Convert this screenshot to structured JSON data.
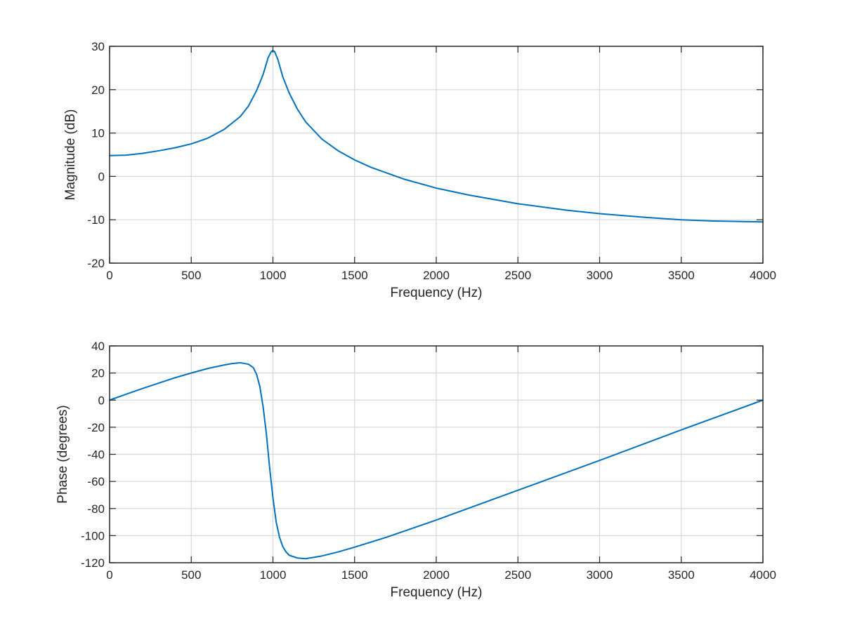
{
  "colors": {
    "series": "#0072BD",
    "axis": "#262626",
    "grid": "#d9d9d9"
  },
  "chart_data": [
    {
      "type": "line",
      "title": "",
      "xlabel": "Frequency (Hz)",
      "ylabel": "Magnitude (dB)",
      "xlim": [
        0,
        4000
      ],
      "ylim": [
        -20,
        30
      ],
      "xticks": [
        0,
        500,
        1000,
        1500,
        2000,
        2500,
        3000,
        3500,
        4000
      ],
      "yticks": [
        -20,
        -10,
        0,
        10,
        20,
        30
      ],
      "xtick_labels": [
        "0",
        "500",
        "1000",
        "1500",
        "2000",
        "2500",
        "3000",
        "3500",
        "4000"
      ],
      "ytick_labels": [
        "-20",
        "-10",
        "0",
        "10",
        "20",
        "30"
      ],
      "grid": true,
      "legend": null,
      "series": [
        {
          "x": [
            0,
            100,
            200,
            300,
            400,
            500,
            600,
            700,
            800,
            850,
            900,
            940,
            970,
            990,
            1000,
            1010,
            1030,
            1060,
            1100,
            1150,
            1200,
            1300,
            1400,
            1500,
            1600,
            1800,
            2000,
            2200,
            2500,
            2800,
            3000,
            3300,
            3500,
            3700,
            4000
          ],
          "values": [
            4.8,
            4.9,
            5.3,
            5.9,
            6.6,
            7.5,
            8.8,
            10.8,
            13.8,
            16.2,
            19.8,
            23.5,
            27.3,
            28.8,
            29.0,
            28.8,
            27.0,
            23.0,
            19.2,
            15.5,
            12.6,
            8.6,
            5.9,
            3.8,
            2.1,
            -0.6,
            -2.7,
            -4.3,
            -6.3,
            -7.8,
            -8.6,
            -9.5,
            -10.0,
            -10.3,
            -10.5
          ]
        }
      ]
    },
    {
      "type": "line",
      "title": "",
      "xlabel": "Frequency (Hz)",
      "ylabel": "Phase (degrees)",
      "xlim": [
        0,
        4000
      ],
      "ylim": [
        -120,
        40
      ],
      "xticks": [
        0,
        500,
        1000,
        1500,
        2000,
        2500,
        3000,
        3500,
        4000
      ],
      "yticks": [
        -120,
        -100,
        -80,
        -60,
        -40,
        -20,
        0,
        20,
        40
      ],
      "xtick_labels": [
        "0",
        "500",
        "1000",
        "1500",
        "2000",
        "2500",
        "3000",
        "3500",
        "4000"
      ],
      "ytick_labels": [
        "-120",
        "-100",
        "-80",
        "-60",
        "-40",
        "-20",
        "0",
        "20",
        "40"
      ],
      "grid": true,
      "legend": null,
      "series": [
        {
          "x": [
            0,
            100,
            200,
            300,
            400,
            500,
            600,
            700,
            750,
            800,
            850,
            880,
            900,
            920,
            940,
            960,
            980,
            1000,
            1020,
            1040,
            1060,
            1080,
            1100,
            1150,
            1200,
            1300,
            1400,
            1500,
            1700,
            2000,
            2500,
            3000,
            3500,
            4000
          ],
          "values": [
            0,
            4.3,
            8.5,
            12.5,
            16.5,
            20.0,
            23.3,
            25.9,
            27.0,
            27.6,
            26.5,
            24.0,
            19.0,
            10.0,
            -5.0,
            -25.0,
            -50.0,
            -72.0,
            -90.0,
            -101.0,
            -108.0,
            -112.0,
            -114.5,
            -116.5,
            -117.0,
            -115.0,
            -112.0,
            -108.5,
            -101.0,
            -88.5,
            -66.5,
            -44.5,
            -22.0,
            0.0
          ]
        }
      ]
    }
  ]
}
